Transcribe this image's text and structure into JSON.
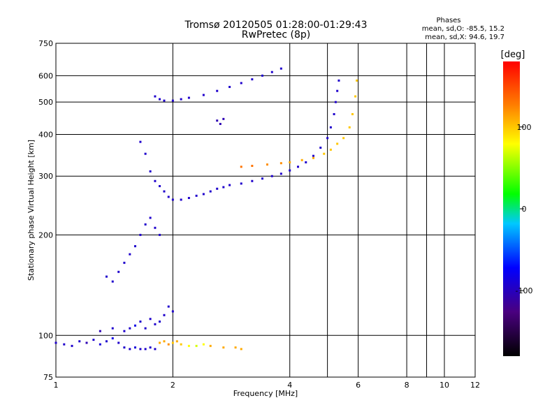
{
  "chart_data": {
    "type": "scatter",
    "title": "Tromsø 20120505 01:28:00-01:29:43",
    "subtitle": "RwPretec (8p)",
    "xlabel": "Frequency [MHz]",
    "ylabel": "Stationary phase Virtual Height [km]",
    "x_scale": "log",
    "y_scale": "log",
    "xlim": [
      1,
      12
    ],
    "ylim": [
      75,
      750
    ],
    "x_ticks": [
      {
        "v": 1,
        "label": "1"
      },
      {
        "v": 2,
        "label": "2"
      },
      {
        "v": 4,
        "label": "4"
      },
      {
        "v": 6,
        "label": "6"
      },
      {
        "v": 8,
        "label": "8"
      },
      {
        "v": 10,
        "label": "10"
      },
      {
        "v": 12,
        "label": "12"
      }
    ],
    "x_gridlines": [
      2,
      4,
      5,
      6,
      8,
      9,
      10,
      12
    ],
    "y_ticks": [
      {
        "v": 75,
        "label": "75"
      },
      {
        "v": 100,
        "label": "100"
      },
      {
        "v": 200,
        "label": "200"
      },
      {
        "v": 300,
        "label": "300"
      },
      {
        "v": 400,
        "label": "400"
      },
      {
        "v": 500,
        "label": "500"
      },
      {
        "v": 600,
        "label": "600"
      },
      {
        "v": 750,
        "label": "750"
      }
    ],
    "grid": true,
    "phases_legend": {
      "heading": "Phases",
      "line1": "mean, sd,O: -85.5, 15.2",
      "line2": "mean, sd,X: 94.6, 19.7"
    },
    "colorbar": {
      "label": "[deg]",
      "range": [
        -180,
        180
      ],
      "ticks": [
        {
          "v": 100,
          "label": "100"
        },
        {
          "v": 0,
          "label": "0"
        },
        {
          "v": -100,
          "label": "-100"
        }
      ]
    },
    "series": [
      {
        "points": [
          [
            1.0,
            95,
            -100
          ],
          [
            1.05,
            94,
            -100
          ],
          [
            1.1,
            93,
            -100
          ],
          [
            1.15,
            96,
            -100
          ],
          [
            1.2,
            95,
            -110
          ],
          [
            1.25,
            97,
            -100
          ],
          [
            1.3,
            94,
            -95
          ],
          [
            1.35,
            96,
            -100
          ],
          [
            1.4,
            98,
            -90
          ],
          [
            1.45,
            95,
            -100
          ],
          [
            1.5,
            92,
            -100
          ],
          [
            1.55,
            91,
            -100
          ],
          [
            1.6,
            92,
            -95
          ],
          [
            1.65,
            91,
            -100
          ],
          [
            1.7,
            91,
            -100
          ],
          [
            1.75,
            92,
            -100
          ],
          [
            1.8,
            91,
            -100
          ]
        ]
      },
      {
        "points": [
          [
            1.3,
            103,
            -110
          ],
          [
            1.4,
            105,
            -100
          ],
          [
            1.5,
            103,
            -100
          ],
          [
            1.55,
            105,
            -100
          ],
          [
            1.6,
            107,
            -90
          ],
          [
            1.65,
            110,
            -100
          ],
          [
            1.7,
            105,
            -100
          ],
          [
            1.75,
            112,
            -100
          ],
          [
            1.8,
            108,
            -100
          ],
          [
            1.85,
            110,
            -100
          ],
          [
            1.9,
            115,
            -100
          ],
          [
            1.95,
            122,
            -100
          ],
          [
            2.0,
            118,
            -100
          ]
        ]
      },
      {
        "points": [
          [
            1.85,
            95,
            110
          ],
          [
            1.9,
            96,
            110
          ],
          [
            1.95,
            94,
            120
          ],
          [
            2.0,
            95,
            100
          ],
          [
            2.05,
            96,
            110
          ],
          [
            2.1,
            94,
            100
          ],
          [
            2.2,
            93,
            80
          ],
          [
            2.3,
            93,
            70
          ],
          [
            2.4,
            94,
            80
          ],
          [
            2.5,
            93,
            110
          ],
          [
            2.7,
            92,
            110
          ],
          [
            2.9,
            92,
            110
          ],
          [
            3.0,
            91,
            110
          ]
        ]
      },
      {
        "points": [
          [
            1.35,
            150,
            -100
          ],
          [
            1.4,
            145,
            -100
          ],
          [
            1.45,
            155,
            -100
          ],
          [
            1.5,
            165,
            -100
          ],
          [
            1.55,
            175,
            -100
          ],
          [
            1.6,
            185,
            -100
          ],
          [
            1.65,
            200,
            -100
          ],
          [
            1.7,
            215,
            -100
          ],
          [
            1.75,
            225,
            -100
          ],
          [
            1.8,
            210,
            -100
          ],
          [
            1.85,
            200,
            -100
          ]
        ]
      },
      {
        "points": [
          [
            1.65,
            380,
            -100
          ],
          [
            1.7,
            350,
            -100
          ],
          [
            1.75,
            310,
            -100
          ],
          [
            1.8,
            290,
            -100
          ],
          [
            1.85,
            280,
            -100
          ],
          [
            1.9,
            270,
            -100
          ],
          [
            1.95,
            260,
            -100
          ],
          [
            2.0,
            255,
            -100
          ],
          [
            2.1,
            255,
            -100
          ],
          [
            2.2,
            258,
            -100
          ],
          [
            2.3,
            262,
            -100
          ],
          [
            2.4,
            265,
            -100
          ],
          [
            2.5,
            270,
            -100
          ],
          [
            2.6,
            275,
            -100
          ],
          [
            2.7,
            278,
            -100
          ],
          [
            2.8,
            282,
            -100
          ],
          [
            3.0,
            285,
            -100
          ],
          [
            3.2,
            290,
            -100
          ],
          [
            3.4,
            295,
            -100
          ],
          [
            3.6,
            300,
            -100
          ],
          [
            3.8,
            305,
            -100
          ],
          [
            4.0,
            312,
            -100
          ],
          [
            4.2,
            320,
            -100
          ],
          [
            4.4,
            330,
            -100
          ],
          [
            4.6,
            345,
            -100
          ],
          [
            4.8,
            365,
            -100
          ],
          [
            5.0,
            390,
            -100
          ],
          [
            5.1,
            420,
            -100
          ],
          [
            5.2,
            460,
            -100
          ],
          [
            5.25,
            500,
            -100
          ],
          [
            5.3,
            540,
            -100
          ],
          [
            5.35,
            580,
            -100
          ]
        ]
      },
      {
        "points": [
          [
            3.0,
            320,
            130
          ],
          [
            3.2,
            322,
            130
          ],
          [
            3.5,
            325,
            120
          ],
          [
            3.8,
            328,
            120
          ],
          [
            4.0,
            330,
            110
          ],
          [
            4.3,
            335,
            110
          ],
          [
            4.6,
            340,
            110
          ],
          [
            4.9,
            350,
            100
          ],
          [
            5.1,
            360,
            100
          ],
          [
            5.3,
            375,
            100
          ],
          [
            5.5,
            390,
            100
          ],
          [
            5.7,
            420,
            100
          ],
          [
            5.8,
            460,
            100
          ],
          [
            5.9,
            520,
            100
          ],
          [
            5.95,
            580,
            100
          ]
        ]
      },
      {
        "points": [
          [
            1.8,
            520,
            -100
          ],
          [
            1.85,
            510,
            -100
          ],
          [
            1.9,
            505,
            -100
          ],
          [
            2.0,
            505,
            -100
          ],
          [
            2.1,
            510,
            -100
          ],
          [
            2.2,
            515,
            -100
          ],
          [
            2.4,
            525,
            -100
          ],
          [
            2.6,
            540,
            -100
          ],
          [
            2.8,
            555,
            -100
          ],
          [
            3.0,
            570,
            -100
          ],
          [
            3.2,
            585,
            -100
          ],
          [
            3.4,
            600,
            -100
          ],
          [
            3.6,
            615,
            -100
          ],
          [
            3.8,
            630,
            -100
          ]
        ]
      },
      {
        "points": [
          [
            2.6,
            440,
            -110
          ],
          [
            2.65,
            430,
            -110
          ],
          [
            2.7,
            445,
            -110
          ]
        ]
      }
    ]
  }
}
